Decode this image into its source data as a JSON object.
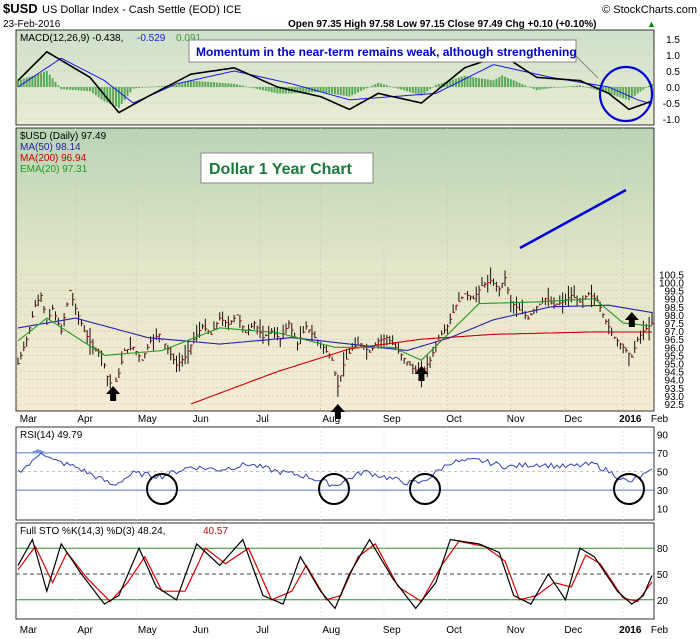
{
  "header": {
    "symbol": "$USD",
    "name": "US Dollar Index - Cash Settle (EOD) ICE",
    "date": "23-Feb-2016",
    "watermark": "© StockCharts.com",
    "quote": "Open 97.35  High 97.58  Low 97.15  Close 97.49  Chg +0.10 (+0.10%)",
    "quote_arrow": "▲"
  },
  "colors": {
    "macd_line": "#000000",
    "signal_line": "#1a1ae6",
    "histogram": "#3a9a3a",
    "price_bar": "#cc0000",
    "ma50": "#2222aa",
    "ma200": "#cc0000",
    "ema20": "#229922",
    "annotation": "#0000cc",
    "pane_bg_top": "#b8d4b4",
    "pane_bg_bottom": "#f5eedc"
  },
  "macd_pane": {
    "legend_macd": "MACD(12,26,9) -0.438,",
    "legend_signal": "-0.529",
    "legend_hist": "0.091",
    "annotation": "Momentum in the near-term remains weak, although strengthening",
    "y_ticks": [
      "1.5",
      "1.0",
      "0.5",
      "0.0",
      "-0.5",
      "-1.0"
    ]
  },
  "price_pane": {
    "legend_title": "$USD (Daily) 97.49",
    "legend_ma50": "MA(50) 98.14",
    "legend_ma200": "MA(200) 96.94",
    "legend_ema20": "EMA(20) 97.31",
    "chart_title": "Dollar 1 Year Chart",
    "y_ticks": [
      "100.5",
      "100.0",
      "99.5",
      "99.0",
      "98.5",
      "98.0",
      "97.5",
      "97.0",
      "96.5",
      "96.0",
      "95.5",
      "95.0",
      "94.5",
      "94.0",
      "93.5",
      "93.0",
      "92.5"
    ],
    "x_labels": [
      "Mar",
      "Apr",
      "May",
      "Jun",
      "Jul",
      "Aug",
      "Sep",
      "Oct",
      "Nov",
      "Dec",
      "2016",
      "Feb"
    ]
  },
  "rsi_pane": {
    "legend": "RSI(14) 49.79",
    "y_ticks": [
      "90",
      "70",
      "50",
      "30",
      "10"
    ]
  },
  "sto_pane": {
    "legend_k": "Full STO %K(14,3) %D(3) 48.24,",
    "legend_d": "40.57",
    "y_ticks": [
      "80",
      "50",
      "20"
    ],
    "x_labels": [
      "Mar",
      "Apr",
      "May",
      "Jun",
      "Jul",
      "Aug",
      "Sep",
      "Oct",
      "Nov",
      "Dec",
      "2016",
      "Feb"
    ]
  },
  "chart_data": {
    "type": "line",
    "title": "Dollar 1 Year Chart",
    "x_label_months": [
      "Mar",
      "Apr",
      "May",
      "Jun",
      "Jul",
      "Aug",
      "Sep",
      "Oct",
      "Nov",
      "Dec",
      "2016",
      "Feb"
    ],
    "price_approx": [
      [
        0,
        95.0
      ],
      [
        3,
        96.5
      ],
      [
        6,
        98.6
      ],
      [
        8,
        99.2
      ],
      [
        10,
        97.5
      ],
      [
        12,
        98.4
      ],
      [
        15,
        97.0
      ],
      [
        18,
        99.5
      ],
      [
        20,
        98.4
      ],
      [
        23,
        97.0
      ],
      [
        26,
        96.0
      ],
      [
        29,
        95.6
      ],
      [
        31,
        94.2
      ],
      [
        33,
        93.4
      ],
      [
        35,
        94.4
      ],
      [
        37,
        95.8
      ],
      [
        40,
        96.0
      ],
      [
        43,
        95.2
      ],
      [
        46,
        96.4
      ],
      [
        49,
        96.8
      ],
      [
        52,
        95.9
      ],
      [
        55,
        94.9
      ],
      [
        58,
        95.4
      ],
      [
        61,
        96.5
      ],
      [
        64,
        97.3
      ],
      [
        67,
        96.8
      ],
      [
        70,
        97.8
      ],
      [
        73,
        97.4
      ],
      [
        76,
        98.0
      ],
      [
        79,
        96.9
      ],
      [
        82,
        97.5
      ],
      [
        85,
        96.6
      ],
      [
        88,
        97.0
      ],
      [
        91,
        96.5
      ],
      [
        94,
        97.5
      ],
      [
        97,
        96.2
      ],
      [
        100,
        97.3
      ],
      [
        103,
        96.6
      ],
      [
        106,
        96.0
      ],
      [
        109,
        95.2
      ],
      [
        111,
        93.6
      ],
      [
        113,
        94.9
      ],
      [
        116,
        96.0
      ],
      [
        119,
        96.2
      ],
      [
        122,
        95.7
      ],
      [
        125,
        96.4
      ],
      [
        128,
        96.6
      ],
      [
        131,
        96.0
      ],
      [
        134,
        95.3
      ],
      [
        137,
        94.7
      ],
      [
        140,
        94.4
      ],
      [
        143,
        95.2
      ],
      [
        146,
        96.6
      ],
      [
        149,
        97.3
      ],
      [
        152,
        98.6
      ],
      [
        155,
        99.3
      ],
      [
        158,
        99.0
      ],
      [
        161,
        99.8
      ],
      [
        164,
        100.1
      ],
      [
        167,
        99.6
      ],
      [
        169,
        100.3
      ],
      [
        171,
        98.8
      ],
      [
        174,
        98.3
      ],
      [
        177,
        97.8
      ],
      [
        180,
        98.5
      ],
      [
        183,
        99.0
      ],
      [
        186,
        98.6
      ],
      [
        189,
        98.8
      ],
      [
        192,
        99.2
      ],
      [
        195,
        98.8
      ],
      [
        198,
        99.3
      ],
      [
        201,
        98.9
      ],
      [
        204,
        97.6
      ],
      [
        207,
        96.6
      ],
      [
        210,
        96.0
      ],
      [
        213,
        95.4
      ],
      [
        215,
        96.5
      ],
      [
        217,
        97.0
      ],
      [
        219,
        97.3
      ],
      [
        220,
        97.49
      ]
    ],
    "ma50_approx": [
      [
        0,
        97.2
      ],
      [
        20,
        97.8
      ],
      [
        45,
        96.6
      ],
      [
        70,
        96.2
      ],
      [
        95,
        96.6
      ],
      [
        115,
        96.2
      ],
      [
        135,
        95.8
      ],
      [
        150,
        96.6
      ],
      [
        165,
        97.7
      ],
      [
        185,
        98.5
      ],
      [
        205,
        98.6
      ],
      [
        220,
        98.14
      ]
    ],
    "ma200_approx": [
      [
        60,
        92.5
      ],
      [
        90,
        94.5
      ],
      [
        115,
        95.9
      ],
      [
        140,
        96.5
      ],
      [
        165,
        96.8
      ],
      [
        200,
        96.95
      ],
      [
        220,
        96.94
      ]
    ],
    "ema20_approx": [
      [
        0,
        96.4
      ],
      [
        10,
        97.8
      ],
      [
        30,
        95.5
      ],
      [
        50,
        95.8
      ],
      [
        70,
        97.2
      ],
      [
        90,
        96.9
      ],
      [
        110,
        96.0
      ],
      [
        130,
        96.0
      ],
      [
        140,
        95.2
      ],
      [
        160,
        98.7
      ],
      [
        180,
        98.8
      ],
      [
        200,
        99.0
      ],
      [
        210,
        97.5
      ],
      [
        220,
        97.31
      ]
    ],
    "macd_approx": [
      [
        0,
        0.2
      ],
      [
        10,
        1.1
      ],
      [
        25,
        0.3
      ],
      [
        35,
        -0.8
      ],
      [
        45,
        -0.3
      ],
      [
        60,
        0.4
      ],
      [
        75,
        0.6
      ],
      [
        90,
        0.0
      ],
      [
        105,
        -0.3
      ],
      [
        115,
        -0.7
      ],
      [
        125,
        -0.2
      ],
      [
        140,
        -0.5
      ],
      [
        155,
        0.6
      ],
      [
        168,
        1.0
      ],
      [
        180,
        0.3
      ],
      [
        195,
        0.2
      ],
      [
        205,
        -0.2
      ],
      [
        212,
        -0.7
      ],
      [
        220,
        -0.438
      ]
    ],
    "signal_approx": [
      [
        0,
        0.0
      ],
      [
        15,
        0.9
      ],
      [
        30,
        0.2
      ],
      [
        40,
        -0.5
      ],
      [
        55,
        0.1
      ],
      [
        75,
        0.5
      ],
      [
        95,
        0.1
      ],
      [
        115,
        -0.4
      ],
      [
        130,
        -0.3
      ],
      [
        145,
        -0.2
      ],
      [
        165,
        0.7
      ],
      [
        185,
        0.3
      ],
      [
        205,
        0.0
      ],
      [
        215,
        -0.4
      ],
      [
        220,
        -0.529
      ]
    ],
    "rsi_approx": [
      [
        0,
        50
      ],
      [
        5,
        60
      ],
      [
        8,
        72
      ],
      [
        12,
        62
      ],
      [
        20,
        55
      ],
      [
        30,
        40
      ],
      [
        33,
        35
      ],
      [
        40,
        48
      ],
      [
        50,
        45
      ],
      [
        60,
        55
      ],
      [
        70,
        52
      ],
      [
        80,
        58
      ],
      [
        90,
        50
      ],
      [
        100,
        45
      ],
      [
        110,
        35
      ],
      [
        120,
        50
      ],
      [
        135,
        38
      ],
      [
        140,
        38
      ],
      [
        150,
        60
      ],
      [
        160,
        62
      ],
      [
        170,
        55
      ],
      [
        180,
        58
      ],
      [
        190,
        55
      ],
      [
        200,
        58
      ],
      [
        205,
        50
      ],
      [
        212,
        38
      ],
      [
        216,
        45
      ],
      [
        220,
        49.79
      ]
    ],
    "stok_approx": [
      [
        0,
        60
      ],
      [
        5,
        90
      ],
      [
        10,
        30
      ],
      [
        15,
        85
      ],
      [
        22,
        50
      ],
      [
        30,
        15
      ],
      [
        35,
        25
      ],
      [
        42,
        80
      ],
      [
        48,
        35
      ],
      [
        55,
        20
      ],
      [
        62,
        85
      ],
      [
        70,
        60
      ],
      [
        78,
        90
      ],
      [
        85,
        25
      ],
      [
        92,
        15
      ],
      [
        98,
        70
      ],
      [
        105,
        30
      ],
      [
        110,
        10
      ],
      [
        115,
        50
      ],
      [
        122,
        90
      ],
      [
        130,
        45
      ],
      [
        138,
        10
      ],
      [
        145,
        40
      ],
      [
        150,
        90
      ],
      [
        160,
        85
      ],
      [
        167,
        75
      ],
      [
        172,
        25
      ],
      [
        178,
        15
      ],
      [
        184,
        50
      ],
      [
        190,
        20
      ],
      [
        195,
        80
      ],
      [
        200,
        70
      ],
      [
        204,
        50
      ],
      [
        208,
        30
      ],
      [
        213,
        15
      ],
      [
        217,
        25
      ],
      [
        220,
        48.24
      ]
    ],
    "stod_approx": [
      [
        0,
        55
      ],
      [
        6,
        82
      ],
      [
        12,
        40
      ],
      [
        17,
        75
      ],
      [
        24,
        45
      ],
      [
        32,
        18
      ],
      [
        38,
        40
      ],
      [
        44,
        70
      ],
      [
        50,
        30
      ],
      [
        58,
        30
      ],
      [
        65,
        80
      ],
      [
        72,
        62
      ],
      [
        80,
        80
      ],
      [
        88,
        20
      ],
      [
        95,
        30
      ],
      [
        100,
        60
      ],
      [
        107,
        20
      ],
      [
        112,
        25
      ],
      [
        118,
        70
      ],
      [
        124,
        85
      ],
      [
        132,
        35
      ],
      [
        140,
        18
      ],
      [
        147,
        60
      ],
      [
        153,
        88
      ],
      [
        162,
        82
      ],
      [
        169,
        65
      ],
      [
        174,
        20
      ],
      [
        180,
        25
      ],
      [
        186,
        40
      ],
      [
        192,
        35
      ],
      [
        197,
        72
      ],
      [
        202,
        62
      ],
      [
        206,
        42
      ],
      [
        210,
        22
      ],
      [
        215,
        18
      ],
      [
        220,
        40.57
      ]
    ]
  }
}
